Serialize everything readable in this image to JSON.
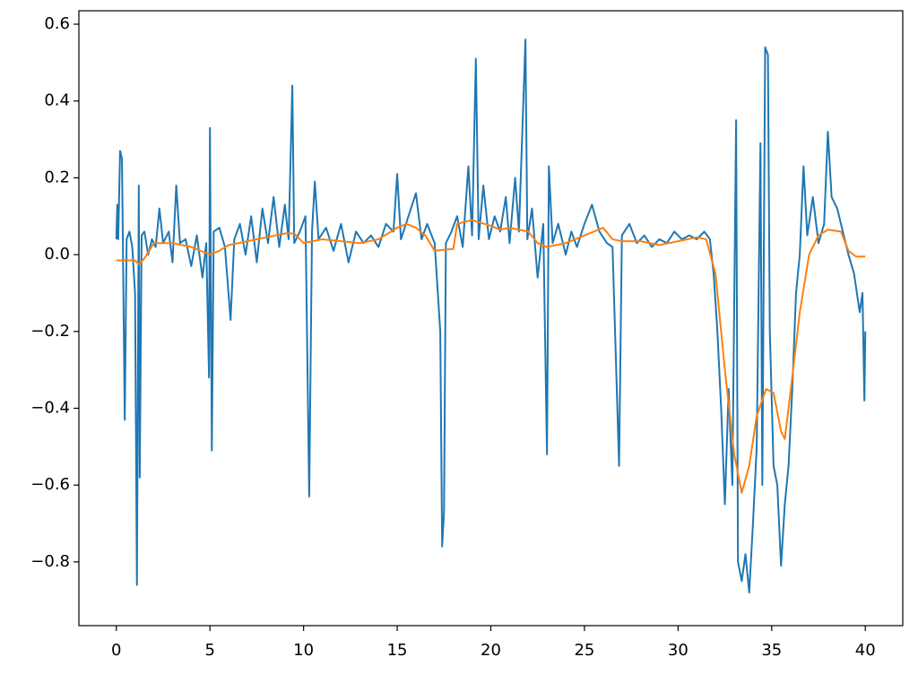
{
  "chart_data": {
    "type": "line",
    "xlim": [
      -2,
      42
    ],
    "ylim": [
      -0.966,
      0.635
    ],
    "xticks": [
      0,
      5,
      10,
      15,
      20,
      25,
      30,
      35,
      40
    ],
    "yticks": [
      {
        "value": -0.8,
        "label": "−0.8"
      },
      {
        "value": -0.6,
        "label": "−0.6"
      },
      {
        "value": -0.4,
        "label": "−0.4"
      },
      {
        "value": -0.2,
        "label": "−0.2"
      },
      {
        "value": 0,
        "label": "0.0"
      },
      {
        "value": 0.2,
        "label": "0.2"
      },
      {
        "value": 0.4,
        "label": "0.4"
      },
      {
        "value": 0.6,
        "label": "0.6"
      }
    ],
    "grid": false,
    "series": [
      {
        "color": "#1f77b4",
        "x": [
          0,
          0.05,
          0.1,
          0.2,
          0.3,
          0.35,
          0.45,
          0.55,
          0.7,
          0.85,
          1.0,
          1.1,
          1.2,
          1.25,
          1.35,
          1.5,
          1.7,
          1.9,
          2.1,
          2.3,
          2.5,
          2.8,
          3.0,
          3.2,
          3.4,
          3.7,
          4.0,
          4.3,
          4.6,
          4.8,
          4.95,
          5.0,
          5.1,
          5.2,
          5.5,
          5.8,
          6.1,
          6.3,
          6.6,
          6.9,
          7.2,
          7.5,
          7.8,
          8.1,
          8.4,
          8.7,
          9.0,
          9.2,
          9.4,
          9.5,
          9.8,
          10.1,
          10.3,
          10.45,
          10.6,
          10.8,
          11.2,
          11.6,
          12.0,
          12.4,
          12.8,
          13.2,
          13.6,
          14.0,
          14.4,
          14.8,
          15.0,
          15.2,
          15.6,
          16.0,
          16.3,
          16.6,
          17.0,
          17.3,
          17.4,
          17.5,
          17.6,
          17.9,
          18.2,
          18.5,
          18.8,
          19.0,
          19.2,
          19.35,
          19.6,
          19.9,
          20.2,
          20.5,
          20.8,
          21.0,
          21.3,
          21.5,
          21.85,
          21.95,
          22.2,
          22.5,
          22.8,
          23.0,
          23.1,
          23.3,
          23.6,
          24.0,
          24.3,
          24.6,
          25.0,
          25.4,
          25.8,
          26.2,
          26.5,
          26.85,
          27.0,
          27.4,
          27.8,
          28.2,
          28.6,
          29.0,
          29.4,
          29.8,
          30.2,
          30.6,
          31.0,
          31.4,
          31.7,
          31.9,
          32.1,
          32.3,
          32.5,
          32.7,
          32.9,
          33.1,
          33.2,
          33.4,
          33.6,
          33.8,
          34.0,
          34.2,
          34.4,
          34.5,
          34.65,
          34.8,
          34.9,
          35.1,
          35.3,
          35.5,
          35.7,
          35.9,
          36.1,
          36.3,
          36.5,
          36.7,
          36.9,
          37.2,
          37.5,
          37.8,
          38.0,
          38.2,
          38.5,
          38.8,
          39.1,
          39.4,
          39.7,
          39.85,
          39.95,
          40.0
        ],
        "values": [
          0.04,
          0.13,
          0.04,
          0.27,
          0.25,
          0.03,
          -0.43,
          0.04,
          0.06,
          0.02,
          -0.1,
          -0.86,
          0.18,
          -0.58,
          0.05,
          0.06,
          0.0,
          0.04,
          0.02,
          0.12,
          0.03,
          0.06,
          -0.02,
          0.18,
          0.03,
          0.04,
          -0.03,
          0.05,
          -0.06,
          0.03,
          -0.32,
          0.33,
          -0.51,
          0.06,
          0.07,
          0.02,
          -0.17,
          0.04,
          0.08,
          0.0,
          0.1,
          -0.02,
          0.12,
          0.03,
          0.15,
          0.02,
          0.13,
          0.04,
          0.44,
          0.03,
          0.06,
          0.1,
          -0.63,
          0.06,
          0.19,
          0.04,
          0.07,
          0.01,
          0.08,
          -0.02,
          0.06,
          0.03,
          0.05,
          0.02,
          0.08,
          0.06,
          0.21,
          0.04,
          0.1,
          0.16,
          0.04,
          0.08,
          0.03,
          -0.2,
          -0.76,
          -0.67,
          0.03,
          0.06,
          0.1,
          0.02,
          0.23,
          0.05,
          0.51,
          0.04,
          0.18,
          0.04,
          0.1,
          0.06,
          0.15,
          0.03,
          0.2,
          0.06,
          0.56,
          0.04,
          0.12,
          -0.06,
          0.08,
          -0.52,
          0.23,
          0.03,
          0.08,
          0.0,
          0.06,
          0.02,
          0.08,
          0.13,
          0.06,
          0.03,
          0.02,
          -0.55,
          0.05,
          0.08,
          0.03,
          0.05,
          0.02,
          0.04,
          0.03,
          0.06,
          0.04,
          0.05,
          0.04,
          0.06,
          0.04,
          -0.05,
          -0.2,
          -0.4,
          -0.65,
          -0.35,
          -0.6,
          0.35,
          -0.8,
          -0.85,
          -0.78,
          -0.88,
          -0.7,
          -0.5,
          0.29,
          -0.6,
          0.54,
          0.52,
          -0.2,
          -0.55,
          -0.6,
          -0.81,
          -0.65,
          -0.55,
          -0.35,
          -0.1,
          0.0,
          0.23,
          0.05,
          0.15,
          0.03,
          0.08,
          0.32,
          0.15,
          0.12,
          0.06,
          0.0,
          -0.05,
          -0.15,
          -0.1,
          -0.38,
          -0.2
        ]
      },
      {
        "color": "#ff7f0e",
        "x": [
          0,
          1,
          1.2,
          1.5,
          2,
          3,
          4,
          5,
          5.5,
          6,
          7,
          8,
          9,
          9.5,
          10,
          11,
          12,
          13,
          14,
          15,
          15.5,
          16,
          16.5,
          17,
          18,
          18.2,
          19,
          20,
          20.5,
          21,
          22,
          22.5,
          23,
          24,
          25,
          26,
          26.5,
          27,
          28,
          29,
          30,
          31,
          31.5,
          32,
          32.5,
          33,
          33.4,
          33.8,
          34.2,
          34.7,
          35.1,
          35.5,
          35.7,
          36,
          36.5,
          37,
          37.5,
          38,
          38.7,
          39.1,
          39.5,
          40
        ],
        "values": [
          -0.015,
          -0.015,
          -0.025,
          -0.01,
          0.03,
          0.03,
          0.02,
          0.0,
          0.01,
          0.025,
          0.035,
          0.045,
          0.055,
          0.055,
          0.03,
          0.04,
          0.035,
          0.03,
          0.04,
          0.07,
          0.08,
          0.07,
          0.05,
          0.01,
          0.015,
          0.08,
          0.09,
          0.075,
          0.065,
          0.07,
          0.06,
          0.03,
          0.02,
          0.03,
          0.05,
          0.07,
          0.04,
          0.035,
          0.035,
          0.025,
          0.035,
          0.045,
          0.04,
          -0.05,
          -0.3,
          -0.52,
          -0.62,
          -0.55,
          -0.42,
          -0.35,
          -0.36,
          -0.46,
          -0.48,
          -0.36,
          -0.15,
          0.0,
          0.05,
          0.065,
          0.06,
          0.01,
          -0.005,
          -0.005
        ]
      }
    ]
  }
}
